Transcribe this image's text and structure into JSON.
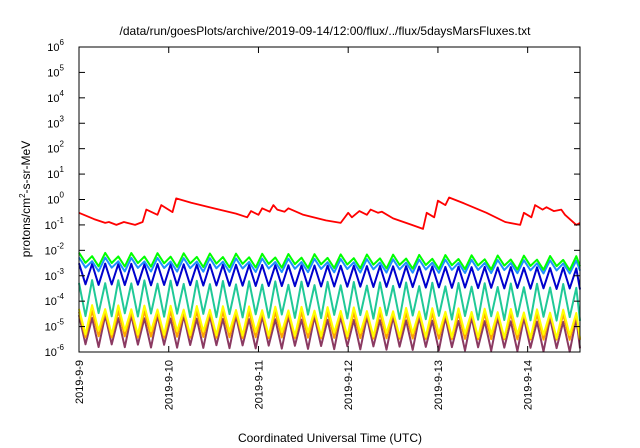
{
  "chart_data": {
    "type": "line",
    "title": "/data/run/goesPlots/archive/2019-09-14/12:00/flux/../flux/5daysMarsFluxes.txt",
    "xlabel": "Coordinated Universal Time (UTC)",
    "ylabel": "protons/cm²-s-sr-MeV",
    "ylabel_parts": {
      "before": "protons/cm",
      "sup": "2",
      "after": "-s-sr-MeV"
    },
    "y_scale": "log",
    "ylim": [
      1e-06,
      1000000.0
    ],
    "y_ticks": [
      {
        "base": "10",
        "exp": "-6",
        "value": 1e-06
      },
      {
        "base": "10",
        "exp": "-5",
        "value": 1e-05
      },
      {
        "base": "10",
        "exp": "-4",
        "value": 0.0001
      },
      {
        "base": "10",
        "exp": "-3",
        "value": 0.001
      },
      {
        "base": "10",
        "exp": "-2",
        "value": 0.01
      },
      {
        "base": "10",
        "exp": "-1",
        "value": 0.1
      },
      {
        "base": "10",
        "exp": "0",
        "value": 1
      },
      {
        "base": "10",
        "exp": "1",
        "value": 10
      },
      {
        "base": "10",
        "exp": "2",
        "value": 100
      },
      {
        "base": "10",
        "exp": "3",
        "value": 1000
      },
      {
        "base": "10",
        "exp": "4",
        "value": 10000
      },
      {
        "base": "10",
        "exp": "5",
        "value": 100000
      },
      {
        "base": "10",
        "exp": "6",
        "value": 1000000
      }
    ],
    "xlim": [
      "2019-09-09T00:00",
      "2019-09-14T14:00"
    ],
    "x_ticks": [
      {
        "label": "2019-9-9",
        "value": "2019-09-09T00:00"
      },
      {
        "label": "2019-9-10",
        "value": "2019-09-10T00:00"
      },
      {
        "label": "2019-9-11",
        "value": "2019-09-11T00:00"
      },
      {
        "label": "2019-9-12",
        "value": "2019-09-12T00:00"
      },
      {
        "label": "2019-9-13",
        "value": "2019-09-13T00:00"
      },
      {
        "label": "2019-9-14",
        "value": "2019-09-14T00:00"
      }
    ],
    "grid": false,
    "legend": "none",
    "series": [
      {
        "color": "#ff0000",
        "points": [
          [
            "2019-09-09T00:00",
            0.3
          ],
          [
            "2019-09-09T04:00",
            0.17
          ],
          [
            "2019-09-09T07:00",
            0.12
          ],
          [
            "2019-09-09T08:00",
            0.13
          ],
          [
            "2019-09-09T10:00",
            0.1
          ],
          [
            "2019-09-09T12:00",
            0.13
          ],
          [
            "2019-09-09T15:00",
            0.1
          ],
          [
            "2019-09-09T17:00",
            0.13
          ],
          [
            "2019-09-09T18:00",
            0.4
          ],
          [
            "2019-09-09T21:00",
            0.25
          ],
          [
            "2019-09-09T22:00",
            0.6
          ],
          [
            "2019-09-10T01:00",
            0.32
          ],
          [
            "2019-09-10T02:00",
            1.1
          ],
          [
            "2019-09-10T06:00",
            0.75
          ],
          [
            "2019-09-10T12:00",
            0.45
          ],
          [
            "2019-09-10T18:00",
            0.28
          ],
          [
            "2019-09-10T21:00",
            0.2
          ],
          [
            "2019-09-10T22:00",
            0.35
          ],
          [
            "2019-09-11T00:00",
            0.25
          ],
          [
            "2019-09-11T01:00",
            0.45
          ],
          [
            "2019-09-11T03:00",
            0.33
          ],
          [
            "2019-09-11T04:00",
            0.6
          ],
          [
            "2019-09-11T05:00",
            0.4
          ],
          [
            "2019-09-11T07:00",
            0.33
          ],
          [
            "2019-09-11T08:00",
            0.45
          ],
          [
            "2019-09-11T12:00",
            0.25
          ],
          [
            "2019-09-11T18:00",
            0.15
          ],
          [
            "2019-09-11T22:00",
            0.12
          ],
          [
            "2019-09-12T00:00",
            0.3
          ],
          [
            "2019-09-12T01:00",
            0.2
          ],
          [
            "2019-09-12T03:00",
            0.35
          ],
          [
            "2019-09-12T05:00",
            0.25
          ],
          [
            "2019-09-12T06:00",
            0.4
          ],
          [
            "2019-09-12T08:00",
            0.3
          ],
          [
            "2019-09-12T09:00",
            0.33
          ],
          [
            "2019-09-12T12:00",
            0.18
          ],
          [
            "2019-09-12T17:00",
            0.1
          ],
          [
            "2019-09-12T20:00",
            0.07
          ],
          [
            "2019-09-12T21:00",
            0.3
          ],
          [
            "2019-09-12T23:00",
            0.2
          ],
          [
            "2019-09-13T00:00",
            0.9
          ],
          [
            "2019-09-13T02:00",
            0.6
          ],
          [
            "2019-09-13T03:00",
            1.2
          ],
          [
            "2019-09-13T07:00",
            0.7
          ],
          [
            "2019-09-13T13:00",
            0.3
          ],
          [
            "2019-09-13T18:00",
            0.13
          ],
          [
            "2019-09-13T22:00",
            0.1
          ],
          [
            "2019-09-13T23:00",
            0.3
          ],
          [
            "2019-09-14T01:00",
            0.2
          ],
          [
            "2019-09-14T02:00",
            0.6
          ],
          [
            "2019-09-14T04:00",
            0.4
          ],
          [
            "2019-09-14T05:00",
            0.5
          ],
          [
            "2019-09-14T07:00",
            0.35
          ],
          [
            "2019-09-14T09:00",
            0.4
          ],
          [
            "2019-09-14T10:00",
            0.25
          ],
          [
            "2019-09-14T13:00",
            0.1
          ],
          [
            "2019-09-14T14:00",
            0.12
          ]
        ]
      },
      {
        "color": "#00ff00",
        "sawtooth": {
          "period_hours": 3.5,
          "low": [
            0.0028,
            0.002
          ],
          "high": [
            0.007,
            0.005
          ]
        }
      },
      {
        "color": "#1e90ff",
        "sawtooth": {
          "period_hours": 3.5,
          "low": [
            0.0018,
            0.0014
          ],
          "high": [
            0.0045,
            0.0035
          ]
        }
      },
      {
        "color": "#0000cd",
        "sawtooth": {
          "period_hours": 3.5,
          "low": [
            0.00045,
            0.0003
          ],
          "high": [
            0.003,
            0.002
          ]
        }
      },
      {
        "color": "#20c997",
        "sawtooth": {
          "period_hours": 3.5,
          "low": [
            3e-05,
            2e-05
          ],
          "high": [
            0.0006,
            0.0004
          ]
        }
      },
      {
        "color": "#ffff00",
        "sawtooth": {
          "period_hours": 3.5,
          "low": [
            6e-06,
            4e-06
          ],
          "high": [
            6e-05,
            4e-05
          ]
        }
      },
      {
        "color": "#ffa500",
        "sawtooth": {
          "period_hours": 3.5,
          "low": [
            4e-06,
            3e-06
          ],
          "high": [
            4e-05,
            3e-05
          ]
        }
      },
      {
        "color": "#8b3a62",
        "sawtooth": {
          "period_hours": 3.5,
          "low": [
            1.8e-06,
            1.2e-06
          ],
          "high": [
            2.5e-05,
            1.8e-05
          ]
        }
      }
    ]
  }
}
